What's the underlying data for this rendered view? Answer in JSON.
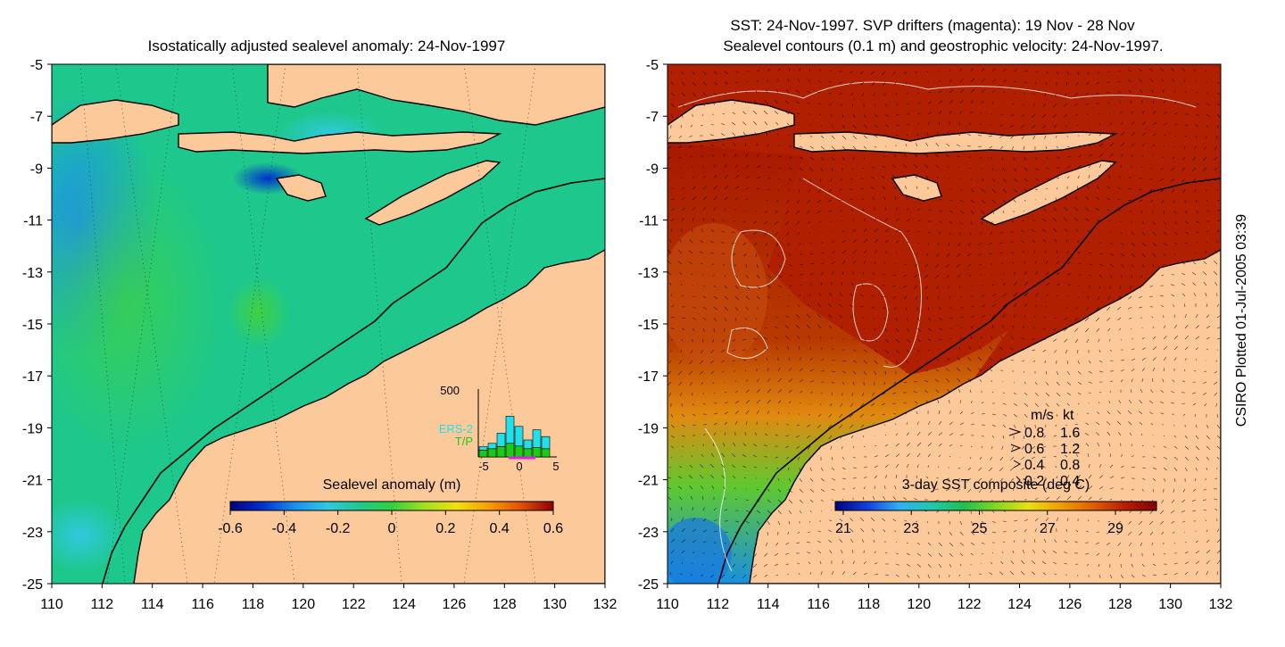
{
  "credit": "CSIRO Plotted 01-Jul-2005 03:39",
  "left_map": {
    "title": "Isostatically adjusted sealevel anomaly: 24-Nov-1997",
    "colorbar": {
      "label": "Sealevel anomaly (m)",
      "ticks": [
        "-0.6",
        "-0.4",
        "-0.2",
        "0",
        "0.2",
        "0.4",
        "0.6"
      ]
    },
    "inset": {
      "ymax_label": "500",
      "series": [
        "ERS-2",
        "T/P"
      ],
      "series_colors": [
        "#22e0ea",
        "#18cc18"
      ],
      "xticks": [
        "-5",
        "0",
        "5"
      ]
    }
  },
  "right_map": {
    "title_line1": "SST: 24-Nov-1997. SVP drifters (magenta): 19 Nov - 28 Nov",
    "title_line2": "Sealevel contours (0.1 m) and geostrophic velocity: 24-Nov-1997.",
    "colorbar": {
      "label": "3-day SST composite (deg C)",
      "ticks": [
        "21",
        "23",
        "25",
        "27",
        "29"
      ]
    },
    "velocity_legend": {
      "header_ms": "m/s",
      "header_kt": "kt",
      "rows": [
        {
          "ms": "0.8",
          "kt": "1.6"
        },
        {
          "ms": "0.6",
          "kt": "1.2"
        },
        {
          "ms": "0.4",
          "kt": "0.8"
        },
        {
          "ms": "0.2",
          "kt": "0.4"
        }
      ]
    }
  },
  "axes": {
    "lon_ticks": [
      "110",
      "112",
      "114",
      "116",
      "118",
      "120",
      "122",
      "124",
      "126",
      "128",
      "130",
      "132"
    ],
    "lat_ticks": [
      "-5",
      "-7",
      "-9",
      "-11",
      "-13",
      "-15",
      "-17",
      "-19",
      "-21",
      "-23",
      "-25"
    ]
  },
  "colors": {
    "land": "#fcc99a",
    "coast": "#000000",
    "ocean_left": "#1ec88c",
    "ocean_right_warm": "#b02000",
    "ocean_right_cool": "#e08010",
    "title_text": "#000000"
  },
  "colormap_sla": [
    "#00007a",
    "#0030d0",
    "#1a90f0",
    "#30c8e0",
    "#20c890",
    "#30d040",
    "#a0e020",
    "#f0e010",
    "#f8a000",
    "#e05000",
    "#900000"
  ],
  "colormap_sst": [
    "#00007a",
    "#1040e0",
    "#30b0f0",
    "#20c8b0",
    "#20c050",
    "#80d820",
    "#e8e010",
    "#f0a000",
    "#e06000",
    "#b82000",
    "#800000"
  ]
}
